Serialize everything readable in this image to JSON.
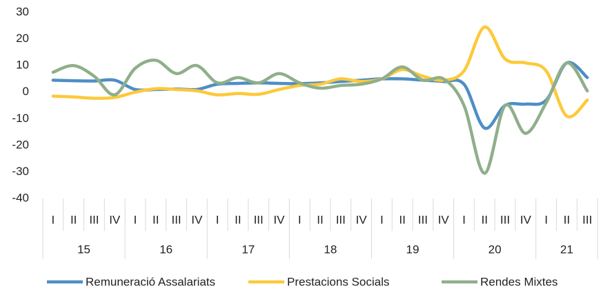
{
  "chart_data": {
    "type": "line",
    "categories": [
      "I",
      "II",
      "III",
      "IV",
      "I",
      "II",
      "III",
      "IV",
      "I",
      "II",
      "III",
      "IV",
      "I",
      "II",
      "III",
      "IV",
      "I",
      "II",
      "III",
      "IV",
      "I",
      "II",
      "III",
      "IV",
      "I",
      "II",
      "III"
    ],
    "x_groups": [
      {
        "label": "15",
        "span": 4
      },
      {
        "label": "16",
        "span": 4
      },
      {
        "label": "17",
        "span": 4
      },
      {
        "label": "18",
        "span": 4
      },
      {
        "label": "19",
        "span": 4
      },
      {
        "label": "20",
        "span": 4
      },
      {
        "label": "21",
        "span": 3
      }
    ],
    "series": [
      {
        "name": "Remuneració Assalariats",
        "color": "#4e8ec6",
        "values": [
          4.5,
          4.3,
          4.2,
          4.5,
          1,
          1,
          1.2,
          1,
          3,
          3.3,
          3.5,
          3.3,
          3.2,
          3.5,
          4,
          4.5,
          5,
          5,
          4.5,
          4,
          3,
          -13.5,
          -5,
          -4.5,
          -3,
          11,
          5.5
        ]
      },
      {
        "name": "Prestacions Socials",
        "color": "#fdc93a",
        "values": [
          -1.5,
          -1.8,
          -2.3,
          -2,
          0,
          1.3,
          1,
          0.5,
          -1,
          -0.5,
          -0.8,
          1,
          2.5,
          3,
          5,
          4,
          5,
          8.5,
          6,
          4.5,
          8,
          24.5,
          12.5,
          11,
          8,
          -9,
          -3
        ]
      },
      {
        "name": "Rendes Mixtes",
        "color": "#8faf8a",
        "values": [
          7.5,
          10,
          6,
          -1,
          9,
          12,
          7,
          10,
          3.5,
          5.5,
          3.5,
          7,
          3.5,
          1.5,
          2.5,
          3,
          5,
          9.5,
          4.5,
          5,
          -5,
          -30.5,
          -5,
          -15.5,
          -4,
          11,
          0.5
        ]
      }
    ],
    "ylim": [
      -40,
      30
    ],
    "yticks": [
      -40,
      -30,
      -20,
      -10,
      0,
      10,
      20,
      30
    ],
    "legend": "bottom"
  }
}
